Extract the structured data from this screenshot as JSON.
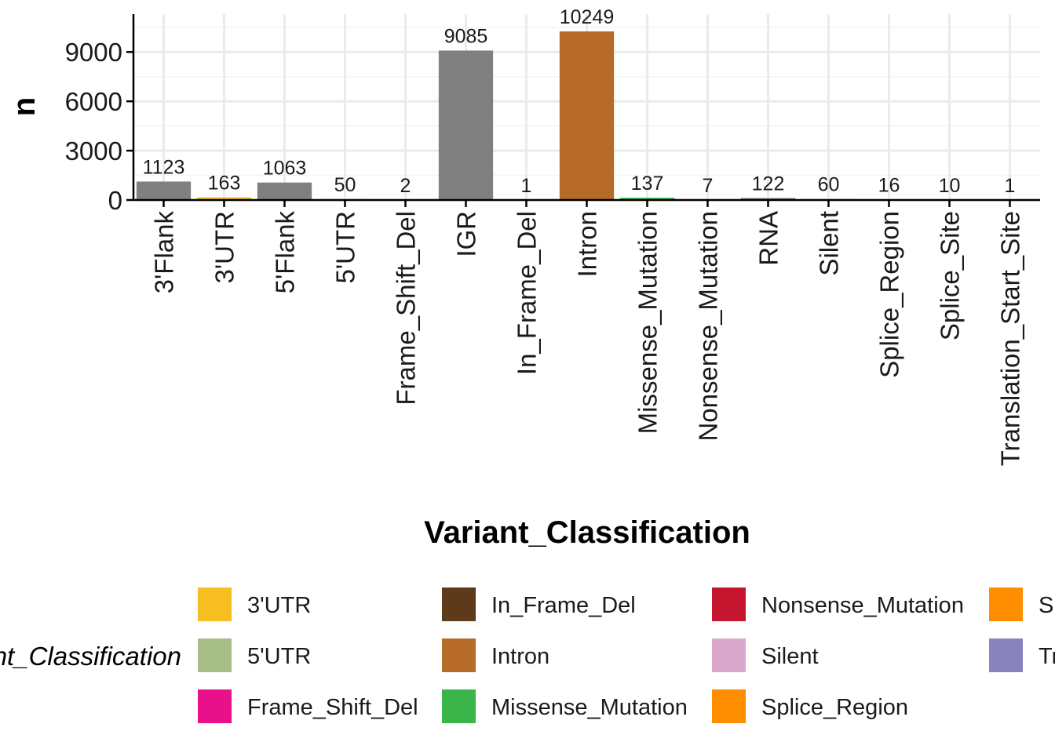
{
  "chart_data": {
    "type": "bar",
    "categories": [
      "3'Flank",
      "3'UTR",
      "5'Flank",
      "5'UTR",
      "Frame_Shift_Del",
      "IGR",
      "In_Frame_Del",
      "Intron",
      "Missense_Mutation",
      "Nonsense_Mutation",
      "RNA",
      "Silent",
      "Splice_Region",
      "Splice_Site",
      "Translation_Start_Site"
    ],
    "values": [
      1123,
      163,
      1063,
      50,
      2,
      9085,
      1,
      10249,
      137,
      7,
      122,
      60,
      16,
      10,
      1
    ],
    "bar_labels": [
      "1123",
      "163",
      "1063",
      "50",
      "2",
      "9085",
      "1",
      "10249",
      "137",
      "7",
      "122",
      "60",
      "16",
      "10",
      "1"
    ],
    "bar_colors": [
      "#808080",
      "#F6BE21",
      "#808080",
      "#A6BD88",
      "#E8118A",
      "#808080",
      "#5C3A1A",
      "#B66B29",
      "#3BB54A",
      "#C4172F",
      "#808080",
      "#DAA8CA",
      "#FE8E00",
      "#FE8E00",
      "#8A82BD"
    ],
    "xlabel": "Variant_Classification",
    "ylabel": "n",
    "yticks": [
      "0",
      "3000",
      "6000",
      "9000"
    ],
    "ytick_values": [
      0,
      3000,
      6000,
      9000
    ],
    "ylim": [
      0,
      11300
    ],
    "grid": true,
    "legend": {
      "placement": "bottom",
      "title": "Variant_Classification",
      "items": [
        {
          "label": "3'UTR",
          "color": "#F6BE21"
        },
        {
          "label": "5'UTR",
          "color": "#A6BD88"
        },
        {
          "label": "Frame_Shift_Del",
          "color": "#E8118A"
        },
        {
          "label": "In_Frame_Del",
          "color": "#5C3A1A"
        },
        {
          "label": "Intron",
          "color": "#B66B29"
        },
        {
          "label": "Missense_Mutation",
          "color": "#3BB54A"
        },
        {
          "label": "Nonsense_Mutation",
          "color": "#C4172F"
        },
        {
          "label": "Silent",
          "color": "#DAA8CA"
        },
        {
          "label": "Splice_Region",
          "color": "#FE8E00"
        },
        {
          "label": "Splice_Site",
          "color": "#FE8E00"
        },
        {
          "label": "Translation_Start_Site",
          "color": "#8A82BD"
        }
      ]
    }
  }
}
